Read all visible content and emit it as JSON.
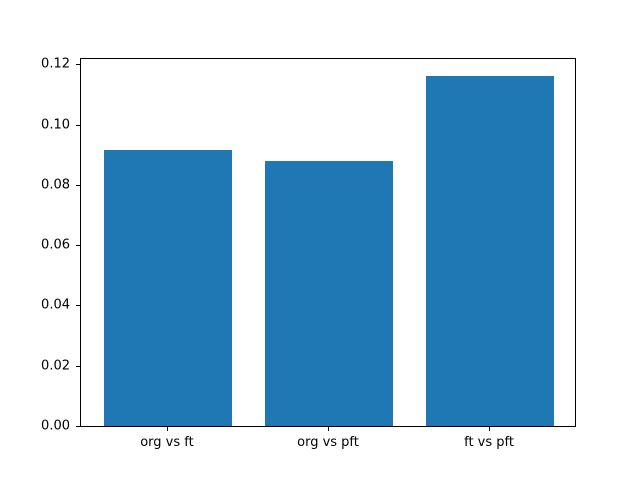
{
  "figure": {
    "background_color": "#ffffff",
    "spine_color": "#000000",
    "tick_label_color": "#000000"
  },
  "chart_data": {
    "type": "bar",
    "title": "",
    "xlabel": "",
    "ylabel": "",
    "categories": [
      "org vs ft",
      "org vs pft",
      "ft vs pft"
    ],
    "values": [
      0.0915,
      0.088,
      0.116
    ],
    "bar_color": "#1f77b4",
    "ylim": [
      0,
      0.1218
    ],
    "yticks": [
      0.0,
      0.02,
      0.04,
      0.06,
      0.08,
      0.1,
      0.12
    ],
    "ytick_labels": [
      "0.00",
      "0.02",
      "0.04",
      "0.06",
      "0.08",
      "0.10",
      "0.12"
    ],
    "grid": false,
    "legend": "none"
  }
}
